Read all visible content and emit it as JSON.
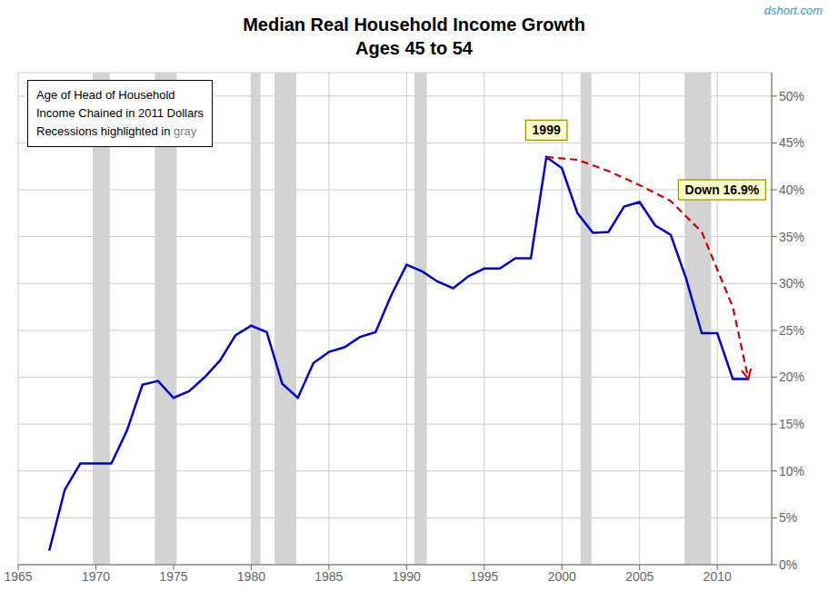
{
  "chart_data": {
    "type": "line",
    "title": "Median Real Household Income Growth",
    "subtitle": "Ages 45 to 54",
    "watermark": "dshort.com",
    "xlim": [
      1965,
      2013.5
    ],
    "ylim": [
      0,
      0.525
    ],
    "xticks": [
      1965,
      1970,
      1975,
      1980,
      1985,
      1990,
      1995,
      2000,
      2005,
      2010
    ],
    "yticks": [
      {
        "value": 0.0,
        "label": "0%"
      },
      {
        "value": 0.05,
        "label": "5%"
      },
      {
        "value": 0.1,
        "label": "10%"
      },
      {
        "value": 0.15,
        "label": "15%"
      },
      {
        "value": 0.2,
        "label": "20%"
      },
      {
        "value": 0.25,
        "label": "25%"
      },
      {
        "value": 0.3,
        "label": "30%"
      },
      {
        "value": 0.35,
        "label": "35%"
      },
      {
        "value": 0.4,
        "label": "40%"
      },
      {
        "value": 0.45,
        "label": "45%"
      },
      {
        "value": 0.5,
        "label": "50%"
      }
    ],
    "grid": true,
    "series": [
      {
        "color": "#0000cc",
        "line_style": "solid",
        "x": [
          1967,
          1968,
          1969,
          1970,
          1971,
          1972,
          1973,
          1974,
          1975,
          1976,
          1977,
          1978,
          1979,
          1980,
          1981,
          1982,
          1983,
          1984,
          1985,
          1986,
          1987,
          1988,
          1989,
          1990,
          1991,
          1992,
          1993,
          1994,
          1995,
          1996,
          1997,
          1998,
          1999,
          2000,
          2001,
          2002,
          2003,
          2004,
          2005,
          2006,
          2007,
          2008,
          2009,
          2010,
          2011,
          2012
        ],
        "values": [
          0.015,
          0.08,
          0.108,
          0.108,
          0.108,
          0.143,
          0.192,
          0.196,
          0.178,
          0.185,
          0.2,
          0.218,
          0.245,
          0.255,
          0.248,
          0.193,
          0.178,
          0.215,
          0.227,
          0.232,
          0.243,
          0.248,
          0.287,
          0.32,
          0.313,
          0.302,
          0.295,
          0.308,
          0.316,
          0.316,
          0.327,
          0.327,
          0.435,
          0.423,
          0.375,
          0.354,
          0.355,
          0.382,
          0.387,
          0.362,
          0.352,
          0.305,
          0.247,
          0.247,
          0.198,
          0.198
        ]
      },
      {
        "color": "#cc0000",
        "line_style": "dashed",
        "marker": "arrow",
        "x": [
          1999,
          2001,
          2003,
          2005,
          2007,
          2009,
          2011,
          2012
        ],
        "values": [
          0.435,
          0.432,
          0.42,
          0.405,
          0.388,
          0.355,
          0.275,
          0.198
        ]
      }
    ],
    "bands": {
      "color": "#d3d3d3",
      "ranges": [
        [
          1969.8,
          1970.9
        ],
        [
          1973.8,
          1975.2
        ],
        [
          1980.0,
          1980.6
        ],
        [
          1981.5,
          1982.9
        ],
        [
          1990.5,
          1991.3
        ],
        [
          2001.2,
          2001.9
        ],
        [
          2007.9,
          2009.6
        ]
      ]
    },
    "annotations": [
      {
        "text": "1999",
        "x": 1999,
        "y": 0.453
      },
      {
        "text": "Down 16.9%",
        "x": 2007.5,
        "y": 0.4
      }
    ],
    "text_box": {
      "lines": [
        "Age of Head of Household",
        "Income Chained in 2011 Dollars"
      ],
      "last_line": "Recessions highlighted in ",
      "last_line_colored": "gray"
    }
  }
}
